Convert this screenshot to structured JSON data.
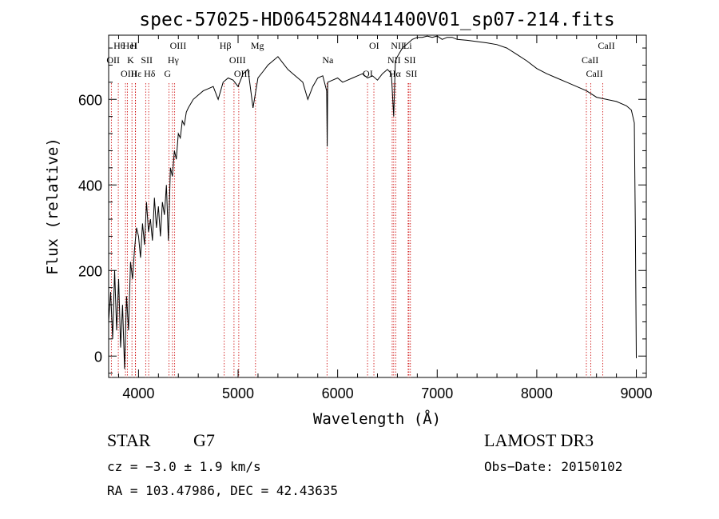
{
  "chart_data": {
    "type": "line",
    "title": "spec-57025-HD064528N441400V01_sp07-214.fits",
    "xlabel": "Wavelength (Å)",
    "ylabel": "Flux (relative)",
    "xlim": [
      3700,
      9100
    ],
    "ylim": [
      -50,
      750
    ],
    "xticks": [
      4000,
      5000,
      6000,
      7000,
      8000,
      9000
    ],
    "yticks": [
      0,
      200,
      400,
      600
    ],
    "series": [
      {
        "x": [
          3700,
          3720,
          3740,
          3760,
          3780,
          3800,
          3820,
          3840,
          3860,
          3880,
          3900,
          3920,
          3940,
          3960,
          3980,
          4000,
          4020,
          4040,
          4060,
          4080,
          4100,
          4120,
          4140,
          4160,
          4180,
          4200,
          4220,
          4240,
          4260,
          4280,
          4300,
          4320,
          4340,
          4360,
          4380,
          4400,
          4420,
          4440,
          4460,
          4480,
          4500,
          4550,
          4600,
          4650,
          4700,
          4750,
          4800,
          4850,
          4900,
          4950,
          5000,
          5050,
          5100,
          5150,
          5200,
          5250,
          5300,
          5350,
          5400,
          5450,
          5500,
          5550,
          5600,
          5650,
          5700,
          5750,
          5800,
          5850,
          5890,
          5895,
          5900,
          5950,
          6000,
          6050,
          6100,
          6150,
          6200,
          6250,
          6300,
          6350,
          6400,
          6450,
          6500,
          6540,
          6563,
          6580,
          6600,
          6650,
          6700,
          6750,
          6800,
          6850,
          6900,
          6950,
          7000,
          7050,
          7100,
          7150,
          7200,
          7300,
          7400,
          7500,
          7600,
          7700,
          7800,
          7900,
          8000,
          8100,
          8200,
          8300,
          8400,
          8500,
          8600,
          8700,
          8800,
          8900,
          8950,
          8980,
          8990,
          9000
        ],
        "y": [
          80,
          150,
          40,
          200,
          60,
          180,
          20,
          120,
          -30,
          140,
          60,
          220,
          180,
          250,
          300,
          280,
          230,
          310,
          260,
          360,
          290,
          320,
          270,
          370,
          300,
          350,
          280,
          360,
          330,
          400,
          270,
          440,
          420,
          480,
          460,
          520,
          510,
          550,
          540,
          570,
          580,
          600,
          610,
          620,
          625,
          630,
          600,
          640,
          650,
          645,
          630,
          660,
          670,
          580,
          650,
          665,
          680,
          690,
          700,
          685,
          670,
          660,
          650,
          640,
          600,
          630,
          650,
          655,
          620,
          490,
          640,
          645,
          650,
          640,
          645,
          650,
          655,
          660,
          650,
          655,
          645,
          660,
          670,
          660,
          560,
          690,
          700,
          720,
          730,
          740,
          745,
          745,
          748,
          745,
          748,
          740,
          745,
          745,
          740,
          738,
          735,
          732,
          728,
          720,
          705,
          690,
          672,
          660,
          650,
          640,
          630,
          620,
          605,
          600,
          595,
          585,
          575,
          545,
          300,
          -5
        ]
      }
    ],
    "line_markers": [
      {
        "label": "Hθ",
        "x": 3797
      },
      {
        "label": "OII",
        "x": 3727
      },
      {
        "label": "OIII",
        "x": 3869
      },
      {
        "label": "HeI",
        "x": 3889
      },
      {
        "label": "K",
        "x": 3934
      },
      {
        "label": "Hε",
        "x": 3970
      },
      {
        "label": "H",
        "x": 3968
      },
      {
        "label": "SII",
        "x": 4072
      },
      {
        "label": "Hδ",
        "x": 4102
      },
      {
        "label": "OIII",
        "x": 4363
      },
      {
        "label": "Hγ",
        "x": 4341
      },
      {
        "label": "G",
        "x": 4305
      },
      {
        "label": "Hβ",
        "x": 4861
      },
      {
        "label": "OIII",
        "x": 4959
      },
      {
        "label": "OIII",
        "x": 5007
      },
      {
        "label": "Mg",
        "x": 5175
      },
      {
        "label": "Na",
        "x": 5893
      },
      {
        "label": "OI",
        "x": 6300
      },
      {
        "label": "OI",
        "x": 6364
      },
      {
        "label": "NII",
        "x": 6548
      },
      {
        "label": "Hα",
        "x": 6563
      },
      {
        "label": "NII",
        "x": 6583
      },
      {
        "label": "SII",
        "x": 6716
      },
      {
        "label": "SII",
        "x": 6731
      },
      {
        "label": "Li",
        "x": 6708
      },
      {
        "label": "CaII",
        "x": 8498
      },
      {
        "label": "CaII",
        "x": 8542
      },
      {
        "label": "CaII",
        "x": 8662
      }
    ],
    "grid": false,
    "legend": "none"
  },
  "info": {
    "object_class": "STAR",
    "subclass": "G7",
    "survey": "LAMOST DR3",
    "cz": "cz = −3.0 ± 1.9 km/s",
    "obs_date": "Obs−Date: 20150102",
    "coords": "RA = 103.47986, DEC =  42.43635"
  },
  "colors": {
    "spectrum": "#000000",
    "line_markers": "#cc0000"
  }
}
